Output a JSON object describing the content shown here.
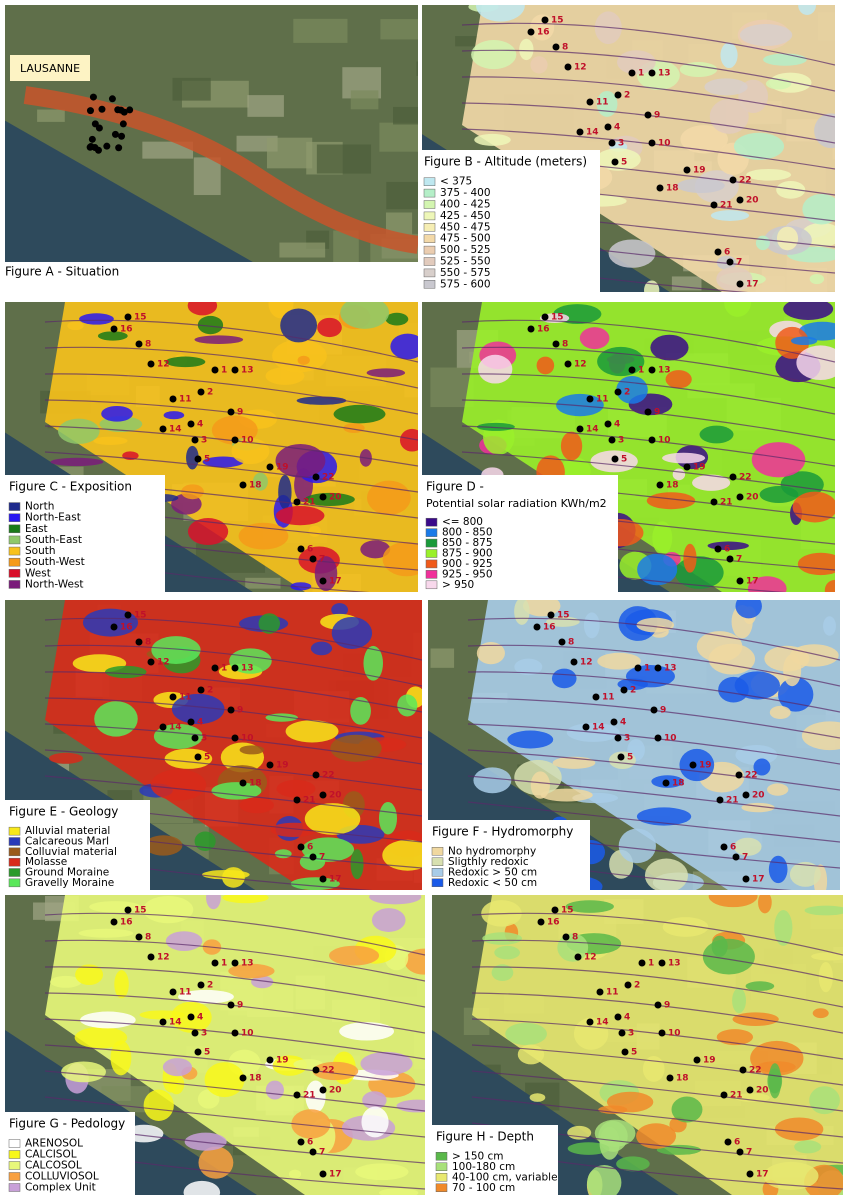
{
  "sites": [
    "1",
    "2",
    "3",
    "4",
    "5",
    "6",
    "7",
    "8",
    "9",
    "10",
    "11",
    "12",
    "13",
    "14",
    "15",
    "16",
    "17",
    "18",
    "19",
    "20",
    "21",
    "22"
  ],
  "panels": [
    {
      "title": "Figure A - Situation",
      "place": "LAUSANNE"
    },
    {
      "title": "Figure B - Altitude (meters)",
      "legend": [
        {
          "label": "< 375",
          "color": "#bfe8f0"
        },
        {
          "label": "375 - 400",
          "color": "#b5efc8"
        },
        {
          "label": "400 - 425",
          "color": "#d3f5b0"
        },
        {
          "label": "425 - 450",
          "color": "#eef7b8"
        },
        {
          "label": "450 - 475",
          "color": "#f6eeb4"
        },
        {
          "label": "475 - 500",
          "color": "#f3d9a8"
        },
        {
          "label": "500 - 525",
          "color": "#ebcdb0"
        },
        {
          "label": "525 - 550",
          "color": "#e2cbbd"
        },
        {
          "label": "550 - 575",
          "color": "#d8cfcb"
        },
        {
          "label": "575 - 600",
          "color": "#c9c8cf"
        }
      ]
    },
    {
      "title": "Figure C - Exposition",
      "legend": [
        {
          "label": "North",
          "color": "#1e2a8c"
        },
        {
          "label": "North-East",
          "color": "#2a18f0"
        },
        {
          "label": "East",
          "color": "#1a7a1a"
        },
        {
          "label": "South-East",
          "color": "#8fc86a"
        },
        {
          "label": "South",
          "color": "#f8c21c"
        },
        {
          "label": "South-West",
          "color": "#f59a1a"
        },
        {
          "label": "West",
          "color": "#d8102a"
        },
        {
          "label": "North-West",
          "color": "#7a1c7a"
        }
      ]
    },
    {
      "title": "Figure D -",
      "subtitle": "Potential solar radiation KWh/m2",
      "legend": [
        {
          "label": "<= 800",
          "color": "#3a0a8a"
        },
        {
          "label": "800 - 850",
          "color": "#1a7ae8"
        },
        {
          "label": "850 - 875",
          "color": "#1a9a3a"
        },
        {
          "label": "875 - 900",
          "color": "#9af02a"
        },
        {
          "label": "900 - 925",
          "color": "#f05a1a"
        },
        {
          "label": "925 - 950",
          "color": "#f0309a"
        },
        {
          "label": "> 950",
          "color": "#f8d8ec"
        }
      ]
    },
    {
      "title": "Figure E - Geology",
      "legend": [
        {
          "label": "Alluvial material",
          "color": "#f8e81a"
        },
        {
          "label": "Calcareous Marl",
          "color": "#2a3ab8"
        },
        {
          "label": "Colluvial material",
          "color": "#9a5a1a"
        },
        {
          "label": "Molasse",
          "color": "#d82a1a"
        },
        {
          "label": "Ground Moraine",
          "color": "#2a9a2a"
        },
        {
          "label": "Gravelly Moraine",
          "color": "#5ae85a"
        }
      ]
    },
    {
      "title": "Figure F - Hydromorphy",
      "legend": [
        {
          "label": "No hydromorphy",
          "color": "#f0d8a0"
        },
        {
          "label": "Sligthly redoxic",
          "color": "#d8e0b0"
        },
        {
          "label": "Redoxic > 50 cm",
          "color": "#a8cce8"
        },
        {
          "label": "Redoxic < 50 cm",
          "color": "#1a5ae8"
        }
      ]
    },
    {
      "title": "Figure G - Pedology",
      "legend": [
        {
          "label": "ARENOSOL",
          "color": "#ffffff"
        },
        {
          "label": "CALCISOL",
          "color": "#f8f81a"
        },
        {
          "label": "CALCOSOL",
          "color": "#e8f87a"
        },
        {
          "label": "COLLUVIOSOL",
          "color": "#f8a040"
        },
        {
          "label": "Complex Unit",
          "color": "#c8a0d8"
        }
      ]
    },
    {
      "title": "Figure H - Depth",
      "legend": [
        {
          "label": "> 150 cm",
          "color": "#5ab84a"
        },
        {
          "label": "100-180 cm",
          "color": "#a8e07a"
        },
        {
          "label": "40-100 cm, variable",
          "color": "#e8e870"
        },
        {
          "label": "70 - 100 cm",
          "color": "#f08a2a"
        }
      ]
    }
  ]
}
